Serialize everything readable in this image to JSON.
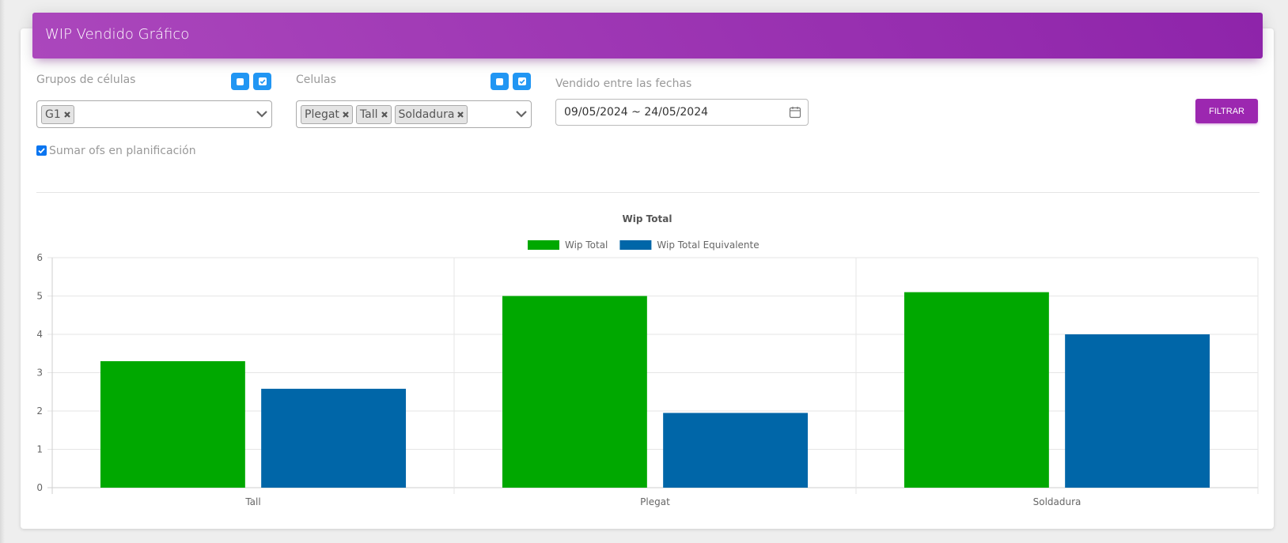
{
  "header": {
    "title": "WIP Vendido Gráfico"
  },
  "filters": {
    "groups": {
      "label": "Grupos de células",
      "tags": [
        "G1"
      ]
    },
    "cells": {
      "label": "Celulas",
      "tags": [
        "Plegat",
        "Tall",
        "Soldadura"
      ]
    },
    "dates": {
      "label": "Vendido entre las fechas",
      "value": "09/05/2024 ~ 24/05/2024"
    },
    "filter_button": "Filtrar",
    "sum_checkbox": {
      "label": "Sumar ofs en planificación",
      "checked": true
    }
  },
  "colors": {
    "header": "#9c27b0",
    "accent_blue": "#2196f3",
    "series_green": "#00a800",
    "series_blue": "#0066a8"
  },
  "chart_data": {
    "type": "bar",
    "title": "Wip Total",
    "categories": [
      "Tall",
      "Plegat",
      "Soldadura"
    ],
    "series": [
      {
        "name": "Wip Total",
        "values": [
          3.3,
          5.0,
          5.1
        ],
        "color": "#00a800"
      },
      {
        "name": "Wip Total Equivalente",
        "values": [
          2.58,
          1.95,
          4.0
        ],
        "color": "#0066a8"
      }
    ],
    "ylim": [
      0,
      6
    ],
    "yticks": [
      "0",
      "1",
      "2",
      "3",
      "4",
      "5",
      "6"
    ],
    "legend": "top-center",
    "grid": true
  }
}
